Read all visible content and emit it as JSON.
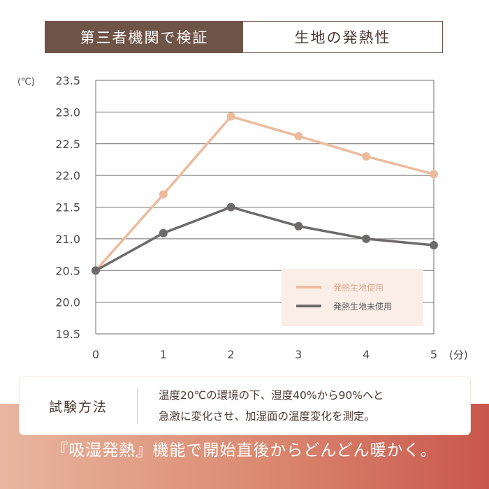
{
  "header": {
    "badge": "第三者機関で検証",
    "title": "生地の発熱性"
  },
  "chart_data": {
    "type": "line",
    "y_unit": "(℃)",
    "x_unit": "(分)",
    "x": [
      0,
      1,
      2,
      3,
      4,
      5
    ],
    "x_tick_labels": [
      "0",
      "1",
      "2",
      "3",
      "4",
      "5"
    ],
    "y_ticks": [
      19.5,
      20.0,
      20.5,
      21.0,
      21.5,
      22.0,
      22.5,
      23.0,
      23.5
    ],
    "y_tick_labels": [
      "19.5",
      "20.0",
      "20.5",
      "21.0",
      "21.5",
      "22.0",
      "22.5",
      "23.0",
      "23.5"
    ],
    "ylim": [
      19.5,
      23.5
    ],
    "xlim": [
      0,
      5
    ],
    "grid": true,
    "legend_position": "bottom-right",
    "series": [
      {
        "name": "発熱生地使用",
        "color": "#ecbb9e",
        "values": [
          20.5,
          21.7,
          22.93,
          22.62,
          22.3,
          22.02
        ]
      },
      {
        "name": "発熱生地未使用",
        "color": "#6d6a6a",
        "values": [
          20.5,
          21.09,
          21.5,
          21.2,
          21.0,
          20.9
        ]
      }
    ]
  },
  "method": {
    "label": "試験方法",
    "line1": "温度20℃の環境の下、湿度40%から90%へと",
    "line2": "急激に変化させ、加湿面の温度変化を測定。"
  },
  "slogan": "『吸湿発熱』機能で開始直後からどんどん暖かく。",
  "colors": {
    "brand_brown": "#6e5447",
    "band_start": "#e8b6a0",
    "band_end": "#c9574c",
    "grid": "#6f6f6f"
  }
}
